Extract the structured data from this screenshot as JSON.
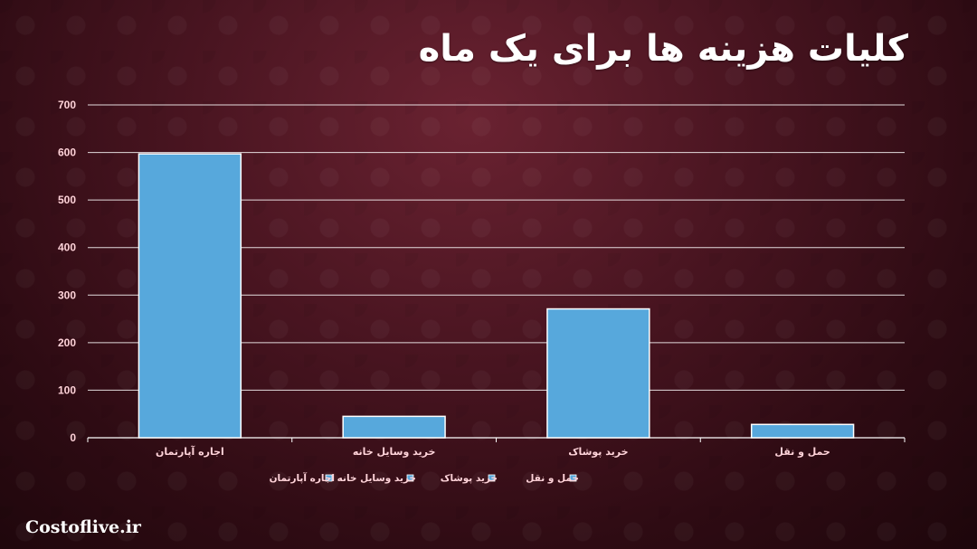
{
  "chart_data": {
    "type": "bar",
    "title": "کلیات هزینه ها برای یک ماه",
    "categories": [
      "اجاره آپارتمان",
      "خرید وسایل خانه",
      "خرید پوشاک",
      "حمل و نقل"
    ],
    "values": [
      597,
      45,
      271,
      28
    ],
    "ylim": [
      0,
      700
    ],
    "yticks": [
      "0",
      "100",
      "200",
      "300",
      "400",
      "500",
      "600",
      "700"
    ],
    "xlabel": "",
    "ylabel": "",
    "grid": true,
    "legend": {
      "position": "bottom",
      "entries": [
        "اجاره آپارتمان",
        "خرید وسایل خانه",
        "خرید پوشاک",
        "حمل و نقل"
      ]
    },
    "colors": {
      "bar": "#57a8dc",
      "bar_stroke": "#ffffff",
      "grid": "#ffffff",
      "text": "#ffd3d9"
    }
  },
  "watermark": "Costoflive.ir"
}
